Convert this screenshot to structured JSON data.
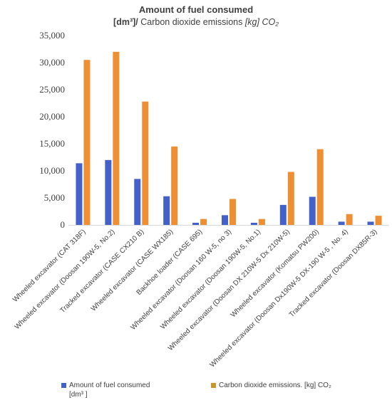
{
  "header": {
    "title": "Amount of fuel consumed",
    "subtitle_a": "[dm³]/",
    "subtitle_b": " Carbon dioxide emissions ",
    "subtitle_c": "[kg] CO₂"
  },
  "legend": {
    "fuel_label_1": "Amount of fuel consumed",
    "fuel_label_2": "[dm³ ]",
    "co2_label": "Carbon dioxide emissions. [kg] CO₂"
  },
  "colors": {
    "fuel": "#4361c8",
    "co2": "#ee8f33",
    "legend_co2": "#c9962a"
  },
  "chart_data": {
    "type": "bar",
    "title": "Amount of fuel consumed [dm³]/ Carbon dioxide emissions [kg] CO₂",
    "ylim": [
      0,
      35000
    ],
    "yticks": [
      0,
      5000,
      10000,
      15000,
      20000,
      25000,
      30000,
      35000
    ],
    "ytick_labels": [
      "0",
      "5,000",
      "10,000",
      "15,000",
      "20,000",
      "25,000",
      "30,000",
      "35,000"
    ],
    "grid": false,
    "legend_position": "bottom",
    "categories": [
      "Wheeled excavator (CAT 318F)",
      "Wheeled excavator (Doosan 190W-5, No.2)",
      "Tracked excavator (CASE CX210 B)",
      "Wheeled excavator (CASE WX185)",
      "Backhoe loader  (CASE 695)",
      "Wheeled excavator (Doosan 160 W-5, no 3)",
      "Wheeled excavator (Doosan 190W-5, No.1)",
      "Wheeled excavator (Doosan DX 210W-5 Dx 210W-5)",
      "Wheeled excavator (Komatsu PW200)",
      "Wheeled excavator (Doosan Dx190W-5 DX-190 W-5 , No. 4)",
      "Tracked excavator (Doosan DX85R-3)"
    ],
    "series": [
      {
        "name": "Amount of fuel consumed [dm³ ]",
        "values": [
          11400,
          12000,
          8500,
          5300,
          400,
          1800,
          400,
          3700,
          5200,
          600,
          600
        ]
      },
      {
        "name": "Carbon dioxide emissions. [kg] CO₂",
        "values": [
          30500,
          32000,
          22800,
          14500,
          1100,
          4800,
          1100,
          9800,
          14000,
          2000,
          1700
        ]
      }
    ]
  }
}
